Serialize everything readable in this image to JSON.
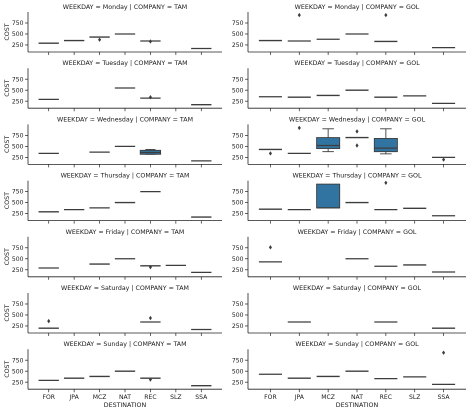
{
  "chart_data": {
    "type": "box",
    "facet_row": "WEEKDAY",
    "facet_col": "COMPANY",
    "title_template": "WEEKDAY = {row} | COMPANY = {col}",
    "rows": [
      "Monday",
      "Tuesday",
      "Wednesday",
      "Thursday",
      "Friday",
      "Saturday",
      "Sunday"
    ],
    "cols": [
      "TAM",
      "GOL"
    ],
    "categories": [
      "FOR",
      "JPA",
      "MCZ",
      "NAT",
      "REC",
      "SLZ",
      "SSA"
    ],
    "xlabel": "DESTINATION",
    "ylabel": "COST",
    "yticks": [
      250,
      500,
      750
    ],
    "ylim": [
      90,
      1000
    ],
    "box_color": "#3274a1",
    "panels": [
      {
        "row": "Monday",
        "col": "TAM",
        "boxes": [
          {
            "cat": "FOR",
            "q1": 290,
            "med": 290,
            "q3": 290
          },
          {
            "cat": "JPA",
            "q1": 350,
            "med": 350,
            "q3": 350
          },
          {
            "cat": "MCZ",
            "q1": 430,
            "med": 430,
            "q3": 430,
            "out": [
              370
            ]
          },
          {
            "cat": "NAT",
            "q1": 500,
            "med": 500,
            "q3": 500
          },
          {
            "cat": "REC",
            "q1": 340,
            "med": 340,
            "q3": 340,
            "out": [
              330
            ]
          },
          {
            "cat": "SSA",
            "q1": 170,
            "med": 170,
            "q3": 170
          }
        ]
      },
      {
        "row": "Monday",
        "col": "GOL",
        "boxes": [
          {
            "cat": "FOR",
            "q1": 350,
            "med": 350,
            "q3": 350
          },
          {
            "cat": "JPA",
            "q1": 340,
            "med": 340,
            "q3": 340,
            "out": [
              930
            ]
          },
          {
            "cat": "MCZ",
            "q1": 380,
            "med": 380,
            "q3": 380
          },
          {
            "cat": "NAT",
            "q1": 500,
            "med": 500,
            "q3": 500
          },
          {
            "cat": "REC",
            "q1": 330,
            "med": 330,
            "q3": 330,
            "out": [
              930
            ]
          },
          {
            "cat": "SSA",
            "q1": 190,
            "med": 190,
            "q3": 190
          }
        ]
      },
      {
        "row": "Tuesday",
        "col": "TAM",
        "boxes": [
          {
            "cat": "FOR",
            "q1": 290,
            "med": 290,
            "q3": 290
          },
          {
            "cat": "NAT",
            "q1": 550,
            "med": 550,
            "q3": 550
          },
          {
            "cat": "REC",
            "q1": 320,
            "med": 320,
            "q3": 320,
            "out": [
              340
            ]
          },
          {
            "cat": "SSA",
            "q1": 170,
            "med": 170,
            "q3": 170
          }
        ]
      },
      {
        "row": "Tuesday",
        "col": "GOL",
        "boxes": [
          {
            "cat": "FOR",
            "q1": 350,
            "med": 350,
            "q3": 350
          },
          {
            "cat": "JPA",
            "q1": 340,
            "med": 340,
            "q3": 340
          },
          {
            "cat": "MCZ",
            "q1": 380,
            "med": 380,
            "q3": 380
          },
          {
            "cat": "NAT",
            "q1": 500,
            "med": 500,
            "q3": 500
          },
          {
            "cat": "REC",
            "q1": 340,
            "med": 340,
            "q3": 340
          },
          {
            "cat": "SLZ",
            "q1": 370,
            "med": 370,
            "q3": 370
          },
          {
            "cat": "SSA",
            "q1": 200,
            "med": 200,
            "q3": 200
          }
        ]
      },
      {
        "row": "Wednesday",
        "col": "TAM",
        "boxes": [
          {
            "cat": "FOR",
            "q1": 340,
            "med": 340,
            "q3": 340
          },
          {
            "cat": "MCZ",
            "q1": 370,
            "med": 370,
            "q3": 370
          },
          {
            "cat": "NAT",
            "q1": 500,
            "med": 500,
            "q3": 500
          },
          {
            "cat": "REC",
            "q1": 320,
            "med": 360,
            "q3": 410,
            "lo": 320,
            "hi": 430
          },
          {
            "cat": "SSA",
            "q1": 170,
            "med": 170,
            "q3": 170
          }
        ]
      },
      {
        "row": "Wednesday",
        "col": "GOL",
        "boxes": [
          {
            "cat": "FOR",
            "q1": 430,
            "med": 430,
            "q3": 430,
            "out": [
              340
            ]
          },
          {
            "cat": "JPA",
            "q1": 340,
            "med": 340,
            "q3": 340,
            "out": [
              920
            ]
          },
          {
            "cat": "MCZ",
            "q1": 450,
            "med": 520,
            "q3": 700,
            "lo": 380,
            "hi": 900
          },
          {
            "cat": "NAT",
            "q1": 700,
            "med": 700,
            "q3": 700,
            "out": [
              840,
              520
            ]
          },
          {
            "cat": "REC",
            "q1": 380,
            "med": 460,
            "q3": 680,
            "lo": 330,
            "hi": 900
          },
          {
            "cat": "SSA",
            "q1": 250,
            "med": 250,
            "q3": 250,
            "out": [
              200
            ]
          }
        ]
      },
      {
        "row": "Thursday",
        "col": "TAM",
        "boxes": [
          {
            "cat": "FOR",
            "q1": 290,
            "med": 290,
            "q3": 290
          },
          {
            "cat": "JPA",
            "q1": 340,
            "med": 340,
            "q3": 340
          },
          {
            "cat": "MCZ",
            "q1": 380,
            "med": 380,
            "q3": 380
          },
          {
            "cat": "NAT",
            "q1": 500,
            "med": 500,
            "q3": 500
          },
          {
            "cat": "REC",
            "q1": 750,
            "med": 750,
            "q3": 750
          },
          {
            "cat": "SSA",
            "q1": 170,
            "med": 170,
            "q3": 170
          }
        ]
      },
      {
        "row": "Thursday",
        "col": "GOL",
        "boxes": [
          {
            "cat": "FOR",
            "q1": 350,
            "med": 350,
            "q3": 350
          },
          {
            "cat": "JPA",
            "q1": 340,
            "med": 340,
            "q3": 340
          },
          {
            "cat": "MCZ",
            "q1": 380,
            "med": 380,
            "q3": 920
          },
          {
            "cat": "NAT",
            "q1": 500,
            "med": 500,
            "q3": 500
          },
          {
            "cat": "REC",
            "q1": 340,
            "med": 340,
            "q3": 340,
            "out": [
              950
            ]
          },
          {
            "cat": "SLZ",
            "q1": 370,
            "med": 370,
            "q3": 370
          },
          {
            "cat": "SSA",
            "q1": 200,
            "med": 200,
            "q3": 200
          }
        ]
      },
      {
        "row": "Friday",
        "col": "TAM",
        "boxes": [
          {
            "cat": "FOR",
            "q1": 290,
            "med": 290,
            "q3": 290
          },
          {
            "cat": "MCZ",
            "q1": 380,
            "med": 380,
            "q3": 380
          },
          {
            "cat": "NAT",
            "q1": 500,
            "med": 500,
            "q3": 500
          },
          {
            "cat": "REC",
            "q1": 340,
            "med": 340,
            "q3": 340,
            "out": [
              310
            ]
          },
          {
            "cat": "SLZ",
            "q1": 350,
            "med": 350,
            "q3": 350
          },
          {
            "cat": "SSA",
            "q1": 190,
            "med": 190,
            "q3": 190
          }
        ]
      },
      {
        "row": "Friday",
        "col": "GOL",
        "boxes": [
          {
            "cat": "FOR",
            "q1": 430,
            "med": 430,
            "q3": 430,
            "out": [
              760
            ]
          },
          {
            "cat": "NAT",
            "q1": 500,
            "med": 500,
            "q3": 500
          },
          {
            "cat": "REC",
            "q1": 330,
            "med": 330,
            "q3": 330
          },
          {
            "cat": "SLZ",
            "q1": 360,
            "med": 360,
            "q3": 360
          },
          {
            "cat": "SSA",
            "q1": 200,
            "med": 200,
            "q3": 200
          }
        ]
      },
      {
        "row": "Saturday",
        "col": "TAM",
        "boxes": [
          {
            "cat": "FOR",
            "q1": 200,
            "med": 200,
            "q3": 200,
            "out": [
              360
            ]
          },
          {
            "cat": "REC",
            "q1": 340,
            "med": 340,
            "q3": 340,
            "out": [
              430
            ]
          },
          {
            "cat": "SSA",
            "q1": 170,
            "med": 170,
            "q3": 170
          }
        ]
      },
      {
        "row": "Saturday",
        "col": "GOL",
        "boxes": [
          {
            "cat": "JPA",
            "q1": 340,
            "med": 340,
            "q3": 340
          },
          {
            "cat": "REC",
            "q1": 340,
            "med": 340,
            "q3": 340
          },
          {
            "cat": "SSA",
            "q1": 200,
            "med": 200,
            "q3": 200
          }
        ]
      },
      {
        "row": "Sunday",
        "col": "TAM",
        "boxes": [
          {
            "cat": "FOR",
            "q1": 290,
            "med": 290,
            "q3": 290
          },
          {
            "cat": "JPA",
            "q1": 340,
            "med": 340,
            "q3": 340
          },
          {
            "cat": "MCZ",
            "q1": 380,
            "med": 380,
            "q3": 380
          },
          {
            "cat": "NAT",
            "q1": 500,
            "med": 500,
            "q3": 500
          },
          {
            "cat": "REC",
            "q1": 340,
            "med": 340,
            "q3": 340,
            "out": [
              310
            ]
          },
          {
            "cat": "SSA",
            "q1": 170,
            "med": 170,
            "q3": 170
          }
        ]
      },
      {
        "row": "Sunday",
        "col": "GOL",
        "boxes": [
          {
            "cat": "FOR",
            "q1": 430,
            "med": 430,
            "q3": 430
          },
          {
            "cat": "JPA",
            "q1": 340,
            "med": 340,
            "q3": 340
          },
          {
            "cat": "MCZ",
            "q1": 380,
            "med": 380,
            "q3": 380
          },
          {
            "cat": "NAT",
            "q1": 500,
            "med": 500,
            "q3": 500
          },
          {
            "cat": "REC",
            "q1": 330,
            "med": 330,
            "q3": 330
          },
          {
            "cat": "SLZ",
            "q1": 370,
            "med": 370,
            "q3": 370
          },
          {
            "cat": "SSA",
            "q1": 200,
            "med": 200,
            "q3": 200,
            "out": [
              920
            ]
          }
        ]
      }
    ]
  }
}
